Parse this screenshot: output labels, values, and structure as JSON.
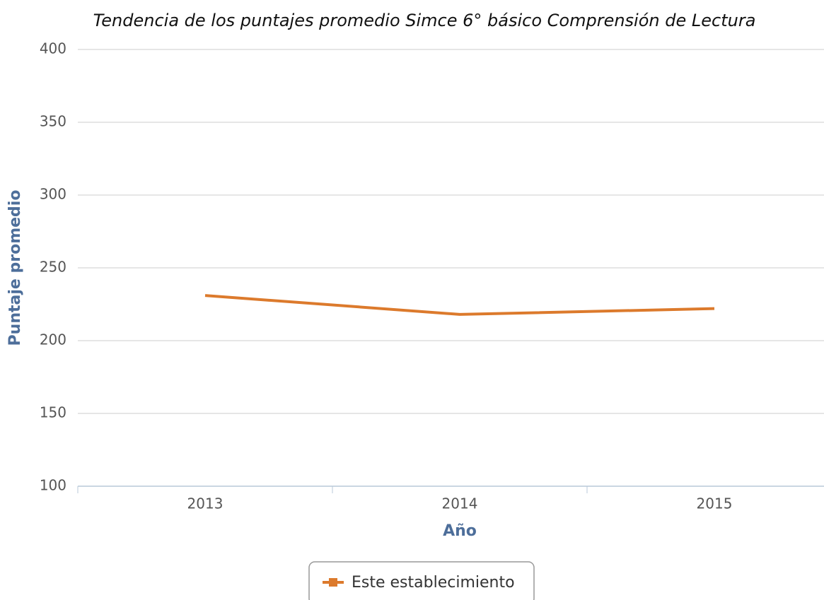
{
  "chart_data": {
    "type": "line",
    "title": "Tendencia de los puntajes promedio Simce 6° básico Comprensión de Lectura",
    "x_label": "Año",
    "y_label": "Puntaje promedio",
    "categories": [
      "2013",
      "2014",
      "2015"
    ],
    "series": [
      {
        "name": "Este establecimiento",
        "color": "#dc7a2c",
        "values": [
          231,
          218,
          222
        ]
      }
    ],
    "ylim": [
      100,
      400
    ],
    "yticks": [
      100,
      150,
      200,
      250,
      300,
      350,
      400
    ],
    "grid": true,
    "legend": "bottom"
  }
}
